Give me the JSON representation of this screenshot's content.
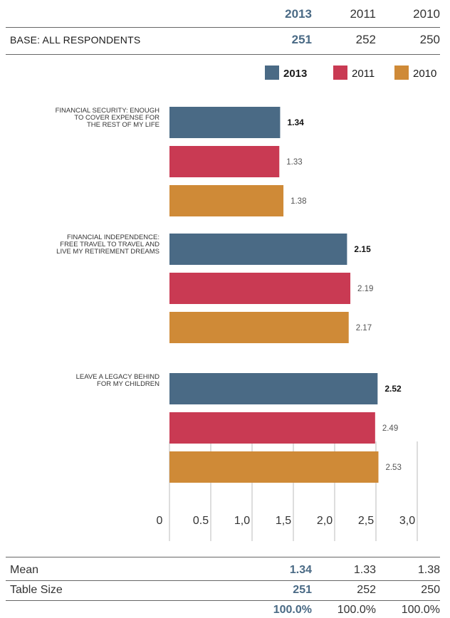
{
  "header": {
    "years": [
      "2013",
      "2011",
      "2010"
    ],
    "base_label": "BASE: ALL RESPONDENTS",
    "base_values": [
      "251",
      "252",
      "250"
    ]
  },
  "chart_data": {
    "type": "bar",
    "orientation": "horizontal",
    "categories": [
      [
        "FINANCIAL SECURITY: ENOUGH",
        "TO COVER EXPENSE FOR",
        "THE REST OF MY LIFE"
      ],
      [
        "FINANCIAL INDEPENDENCE:",
        "FREE TRAVEL TO TRAVEL AND",
        "LIVE MY RETIREMENT DREAMS"
      ],
      [
        "LEAVE A LEGACY BEHIND",
        "FOR MY CHILDREN"
      ]
    ],
    "series": [
      {
        "name": "2013",
        "color": "#4a6a85",
        "values": [
          1.34,
          2.15,
          2.52
        ],
        "labels": [
          "1.34",
          "2.15",
          "2.52"
        ]
      },
      {
        "name": "2011",
        "color": "#c93a53",
        "values": [
          1.33,
          2.19,
          2.49
        ],
        "labels": [
          "1.33",
          "2.19",
          "2.49"
        ]
      },
      {
        "name": "2010",
        "color": "#cf8a37",
        "values": [
          1.38,
          2.17,
          2.53
        ],
        "labels": [
          "1.38",
          "2.17",
          "2.53"
        ]
      }
    ],
    "xlim": [
      0,
      3.0
    ],
    "ticks": [
      0,
      0.5,
      1.0,
      1.5,
      2.0,
      2.5,
      3.0
    ],
    "tick_labels": [
      "0",
      "0.5",
      "1,0",
      "1,5",
      "2,0",
      "2,5",
      "3,0"
    ],
    "legend": "top-right",
    "grid": true
  },
  "footer": {
    "mean_label": "Mean",
    "mean_values": [
      "1.34",
      "1.33",
      "1.38"
    ],
    "size_label": "Table Size",
    "size_values": [
      "251",
      "252",
      "250"
    ],
    "pct_values": [
      "100.0%",
      "100.0%",
      "100.0%"
    ]
  }
}
